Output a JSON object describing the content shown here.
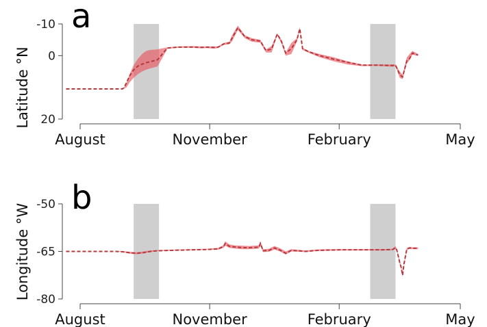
{
  "colors": {
    "band": "#e8575f",
    "band_opacity": 0.65,
    "line": "#b4393f",
    "shade": "#cfcfcf",
    "axis": "#444444",
    "text": "#111111"
  },
  "chart_data": [
    {
      "type": "area",
      "panel_label": "a",
      "ylabel": "Latitude °N",
      "y_inverted": true,
      "ylim": [
        -10,
        20
      ],
      "yticks": [
        -10,
        0,
        20
      ],
      "ytick_labels": [
        "-10",
        "0",
        "20"
      ],
      "xlabel": "",
      "x_month_labels": [
        "August",
        "November",
        "February",
        "May"
      ],
      "x_domain_days": [
        0,
        270
      ],
      "shaded_periods": [
        [
          38,
          56
        ],
        [
          206,
          224
        ]
      ],
      "series": [
        {
          "line_style": "dashed",
          "x": [
            -10,
            30,
            31,
            33,
            35,
            38,
            41,
            44,
            47,
            50,
            55,
            62,
            70,
            80,
            86,
            90,
            95,
            98,
            102,
            106,
            108,
            112,
            117,
            122,
            128,
            132,
            136,
            140,
            143,
            146,
            150,
            154,
            156,
            158,
            162,
            170,
            180,
            190,
            200,
            210,
            222,
            224,
            227,
            229,
            232,
            234,
            236,
            240
          ],
          "y": [
            10.5,
            10.5,
            10.2,
            8.5,
            6.5,
            4.5,
            3.3,
            2.7,
            2.2,
            1.9,
            1.3,
            -2.4,
            -2.7,
            -2.7,
            -2.6,
            -2.7,
            -2.6,
            -2.7,
            -3.7,
            -4.0,
            -5.6,
            -8.8,
            -6.0,
            -5.0,
            -4.6,
            -1.6,
            -2.1,
            -6.8,
            -4.5,
            -0.8,
            -2.2,
            -5.0,
            -8.5,
            -2.2,
            -1.3,
            0.0,
            1.1,
            2.1,
            3.0,
            3.0,
            3.1,
            3.0,
            6.0,
            6.7,
            1.7,
            0.9,
            -0.8,
            -0.2
          ],
          "lower": [
            10.5,
            10.5,
            10.2,
            8.5,
            6.0,
            3.0,
            1.0,
            -0.5,
            -1.5,
            -1.8,
            -2.0,
            -2.6,
            -2.9,
            -3.0,
            -2.9,
            -2.9,
            -2.9,
            -2.9,
            -4.0,
            -4.4,
            -6.5,
            -9.5,
            -6.4,
            -5.5,
            -5.0,
            -2.0,
            -3.0,
            -7.0,
            -5.0,
            -1.0,
            -4.0,
            -5.5,
            -9.0,
            -2.5,
            -1.5,
            -0.5,
            0.5,
            1.8,
            2.8,
            2.8,
            2.8,
            2.8,
            5.0,
            6.0,
            0.6,
            -0.5,
            -1.5,
            -0.5
          ],
          "upper": [
            10.5,
            10.5,
            10.4,
            10.0,
            8.5,
            7.0,
            5.8,
            5.0,
            4.4,
            4.0,
            3.4,
            -2.2,
            -2.5,
            -2.5,
            -2.3,
            -2.4,
            -2.2,
            -2.4,
            -3.4,
            -3.6,
            -4.6,
            -8.1,
            -5.5,
            -4.4,
            -4.1,
            -1.0,
            -1.0,
            -6.5,
            -3.8,
            0.0,
            -0.5,
            -4.5,
            -8.0,
            -1.8,
            -1.0,
            0.5,
            1.8,
            2.8,
            3.3,
            3.2,
            3.5,
            3.3,
            7.0,
            7.4,
            2.5,
            1.4,
            -0.3,
            0.1
          ]
        }
      ]
    },
    {
      "type": "area",
      "panel_label": "b",
      "ylabel": "Longitude °W",
      "y_inverted": false,
      "ylim": [
        -80,
        -50
      ],
      "yticks": [
        -50,
        -65,
        -80
      ],
      "ytick_labels": [
        "-50",
        "-65",
        "-80"
      ],
      "xlabel": "",
      "x_month_labels": [
        "August",
        "November",
        "February",
        "May"
      ],
      "x_domain_days": [
        0,
        270
      ],
      "shaded_periods": [
        [
          38,
          56
        ],
        [
          206,
          224
        ]
      ],
      "series": [
        {
          "line_style": "dashed",
          "x": [
            -10,
            25,
            30,
            35,
            40,
            45,
            50,
            55,
            62,
            70,
            80,
            90,
            98,
            102,
            103,
            106,
            110,
            115,
            120,
            127,
            128,
            130,
            134,
            138,
            142,
            146,
            150,
            155,
            160,
            168,
            175,
            185,
            200,
            215,
            222,
            224,
            225,
            227,
            228,
            229,
            230,
            232,
            234,
            236,
            240
          ],
          "y": [
            -65.0,
            -65.0,
            -65.1,
            -65.4,
            -65.6,
            -65.4,
            -65.0,
            -64.8,
            -64.7,
            -64.6,
            -64.5,
            -64.4,
            -64.2,
            -63.4,
            -62.5,
            -63.4,
            -63.6,
            -63.8,
            -63.8,
            -63.7,
            -62.5,
            -64.8,
            -64.7,
            -63.9,
            -64.6,
            -65.6,
            -64.7,
            -64.8,
            -65.0,
            -64.7,
            -64.6,
            -64.5,
            -64.5,
            -64.5,
            -64.4,
            -63.8,
            -64.7,
            -68.5,
            -70.0,
            -72.5,
            -69.0,
            -64.3,
            -63.9,
            -64.0,
            -64.0
          ],
          "lower": [
            -65.0,
            -65.0,
            -65.2,
            -65.7,
            -65.9,
            -65.6,
            -65.2,
            -64.9,
            -64.8,
            -64.7,
            -64.6,
            -64.5,
            -64.5,
            -63.8,
            -63.2,
            -63.9,
            -64.1,
            -64.3,
            -64.3,
            -64.1,
            -63.2,
            -65.2,
            -65.1,
            -64.4,
            -65.0,
            -66.0,
            -65.0,
            -65.1,
            -65.2,
            -64.9,
            -64.8,
            -64.7,
            -64.7,
            -64.7,
            -64.6,
            -64.2,
            -65.0,
            -69.0,
            -70.5,
            -73.0,
            -69.5,
            -64.6,
            -64.2,
            -64.3,
            -64.3
          ],
          "upper": [
            -65.0,
            -65.0,
            -64.9,
            -65.1,
            -65.3,
            -65.0,
            -64.7,
            -64.6,
            -64.5,
            -64.4,
            -64.3,
            -64.2,
            -63.9,
            -63.0,
            -61.8,
            -62.8,
            -63.1,
            -63.2,
            -63.3,
            -63.1,
            -61.8,
            -64.3,
            -64.2,
            -63.3,
            -64.0,
            -65.0,
            -64.3,
            -64.5,
            -64.7,
            -64.4,
            -64.3,
            -64.3,
            -64.3,
            -64.3,
            -64.2,
            -63.3,
            -64.3,
            -68.0,
            -69.5,
            -72.0,
            -68.5,
            -63.9,
            -63.6,
            -63.7,
            -63.7
          ]
        }
      ]
    }
  ]
}
